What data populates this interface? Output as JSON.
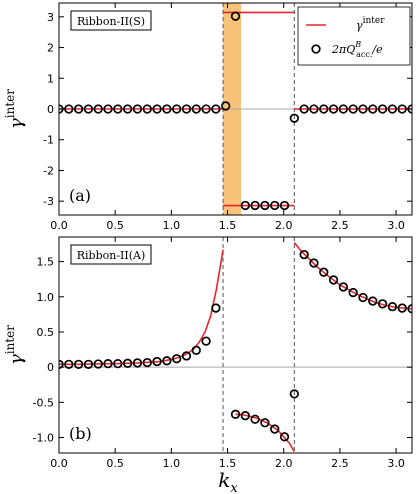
{
  "colors": {
    "curve": "#e8262a",
    "markers": "#000000",
    "shade": "#f5b961",
    "zero_line": "#a8a8a8",
    "dashed": "#555555"
  },
  "xlabel_main": "k",
  "xlabel_sub": "x",
  "chart_data": [
    {
      "type": "line",
      "panel_tag": "(a)",
      "box_label": "Ribbon-II(S)",
      "ylabel": "γ",
      "ylabel_sup": "inter",
      "xlim": [
        0,
        3.14159
      ],
      "ylim": [
        -3.45,
        3.45
      ],
      "xticks": [
        0.0,
        0.5,
        1.0,
        1.5,
        2.0,
        2.5,
        3.0
      ],
      "xtick_labels": [
        "0.0",
        "0.5",
        "1.0",
        "1.5",
        "2.0",
        "2.5",
        "3.0"
      ],
      "yticks": [
        -3,
        -2,
        -1,
        0,
        1,
        2,
        3
      ],
      "ytick_labels": [
        "-3",
        "-2",
        "-1",
        "0",
        "1",
        "2",
        "3"
      ],
      "grid": false,
      "legend_position": "top-right",
      "legend": [
        {
          "kind": "line",
          "label": "γ",
          "sup": "inter"
        },
        {
          "kind": "marker",
          "label": "2πQ",
          "sup": "B",
          "sub": "acc.",
          "tail": "/e"
        }
      ],
      "vlines": [
        1.4601,
        2.0944
      ],
      "shaded_band": [
        1.4601,
        1.62
      ],
      "series": [
        {
          "kind": "line",
          "segments": [
            {
              "x": [
                0,
                1.4601
              ],
              "y": [
                0,
                0
              ]
            },
            {
              "x": [
                1.4601,
                2.0944
              ],
              "y": [
                3.1416,
                3.1416
              ]
            },
            {
              "x": [
                1.4601,
                2.0944
              ],
              "y": [
                -3.1416,
                -3.1416
              ]
            },
            {
              "x": [
                2.0944,
                3.1416
              ],
              "y": [
                0,
                0
              ]
            }
          ]
        },
        {
          "kind": "markers",
          "x": [
            0.0,
            0.0873,
            0.1745,
            0.2618,
            0.3491,
            0.4363,
            0.5236,
            0.6109,
            0.6981,
            0.7854,
            0.8727,
            0.9599,
            1.0472,
            1.1345,
            1.2217,
            1.309,
            1.3963,
            1.4835,
            1.5708,
            1.6581,
            1.7453,
            1.8326,
            1.9199,
            2.0071,
            2.0944,
            2.1817,
            2.2689,
            2.3562,
            2.4435,
            2.5307,
            2.618,
            2.7053,
            2.7925,
            2.8798,
            2.9671,
            3.0543,
            3.1416
          ],
          "y": [
            0,
            0,
            0,
            0,
            0,
            0,
            0,
            0,
            0,
            0,
            0,
            0,
            0,
            0,
            0,
            0,
            0,
            0.1,
            3.02,
            -3.14,
            -3.14,
            -3.14,
            -3.14,
            -3.14,
            -0.3,
            0,
            0,
            0,
            0,
            0,
            0,
            0,
            0,
            0,
            0,
            0,
            0
          ]
        }
      ]
    },
    {
      "type": "line",
      "panel_tag": "(b)",
      "box_label": "Ribbon-II(A)",
      "ylabel": "γ",
      "ylabel_sup": "inter",
      "xlim": [
        0,
        3.14159
      ],
      "ylim": [
        -1.22,
        1.85
      ],
      "xticks": [
        0.0,
        0.5,
        1.0,
        1.5,
        2.0,
        2.5,
        3.0
      ],
      "xtick_labels": [
        "0.0",
        "0.5",
        "1.0",
        "1.5",
        "2.0",
        "2.5",
        "3.0"
      ],
      "yticks": [
        -1.0,
        -0.5,
        0,
        0.5,
        1.0,
        1.5
      ],
      "ytick_labels": [
        "-1.0",
        "-0.5",
        "0",
        "0.5",
        "1.0",
        "1.5"
      ],
      "grid": false,
      "vlines": [
        1.4601,
        2.0944
      ],
      "series": [
        {
          "kind": "line",
          "segments": [
            {
              "x": [
                0.0,
                0.1,
                0.2,
                0.3,
                0.4,
                0.5,
                0.6,
                0.7,
                0.8,
                0.9,
                1.0,
                1.05,
                1.1,
                1.15,
                1.2,
                1.25,
                1.3,
                1.35,
                1.4,
                1.43,
                1.46
              ],
              "y": [
                0.04,
                0.04,
                0.04,
                0.045,
                0.05,
                0.05,
                0.055,
                0.06,
                0.07,
                0.08,
                0.11,
                0.13,
                0.16,
                0.2,
                0.26,
                0.36,
                0.5,
                0.73,
                1.1,
                1.38,
                1.67
              ]
            },
            {
              "x": [
                1.5708,
                1.65,
                1.75,
                1.85,
                1.95,
                2.0,
                2.05,
                2.094
              ],
              "y": [
                -0.67,
                -0.68,
                -0.72,
                -0.79,
                -0.9,
                -0.99,
                -1.08,
                -1.2
              ]
            },
            {
              "x": [
                2.094,
                2.15,
                2.2,
                2.3,
                2.4,
                2.5,
                2.6,
                2.7,
                2.8,
                2.9,
                3.0,
                3.1416
              ],
              "y": [
                1.77,
                1.66,
                1.58,
                1.42,
                1.29,
                1.17,
                1.08,
                1.0,
                0.93,
                0.88,
                0.85,
                0.83
              ]
            }
          ]
        },
        {
          "kind": "markers",
          "x": [
            0.0,
            0.0873,
            0.1745,
            0.2618,
            0.3491,
            0.4363,
            0.5236,
            0.6109,
            0.6981,
            0.7854,
            0.8727,
            0.9599,
            1.0472,
            1.1345,
            1.2217,
            1.309,
            1.3963,
            1.5708,
            1.6581,
            1.7453,
            1.8326,
            1.9199,
            2.0071,
            2.0944,
            2.1817,
            2.2689,
            2.3562,
            2.4435,
            2.5307,
            2.618,
            2.7053,
            2.7925,
            2.8798,
            2.9671,
            3.0543,
            3.1416
          ],
          "y": [
            0.04,
            0.04,
            0.04,
            0.04,
            0.045,
            0.05,
            0.05,
            0.055,
            0.06,
            0.065,
            0.08,
            0.09,
            0.12,
            0.16,
            0.24,
            0.37,
            0.84,
            -0.67,
            -0.69,
            -0.74,
            -0.79,
            -0.88,
            -0.99,
            -0.38,
            1.6,
            1.48,
            1.35,
            1.24,
            1.14,
            1.06,
            0.99,
            0.94,
            0.9,
            0.86,
            0.84,
            0.83
          ]
        }
      ]
    }
  ]
}
